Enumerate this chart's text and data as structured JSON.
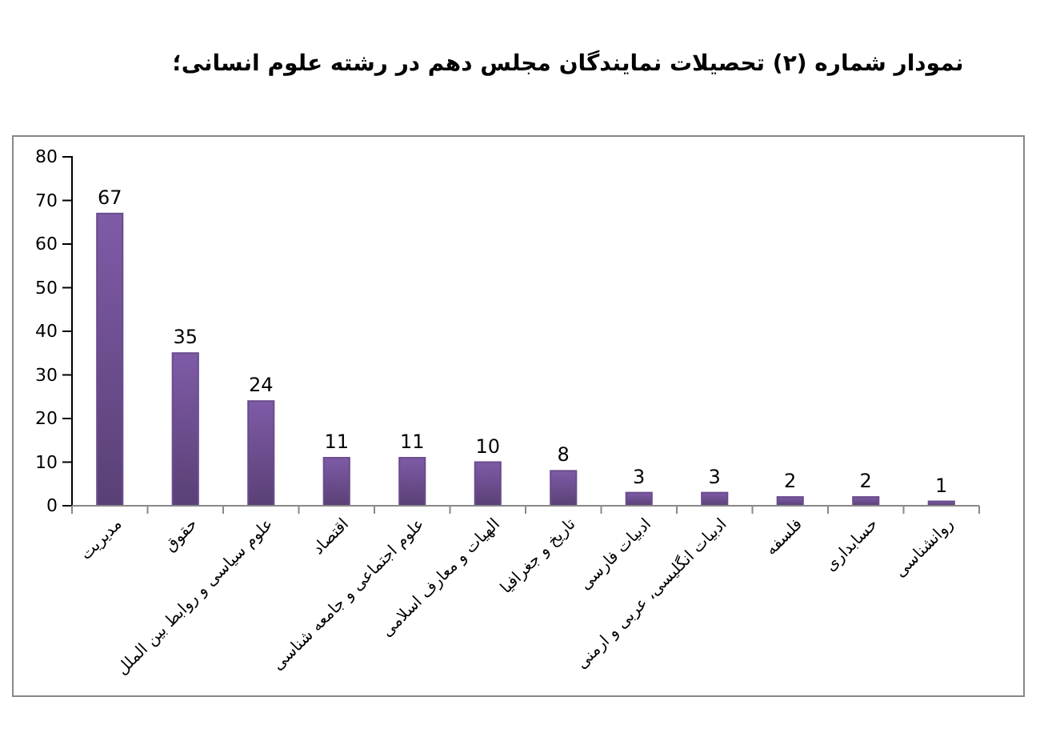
{
  "chart_data": {
    "type": "bar",
    "title": "نمودار شماره (۲) تحصیلات نمایندگان مجلس دهم در رشته علوم انسانی؛",
    "categories": [
      "مدیریت",
      "حقوق",
      "علوم سیاسی و روابط بین الملل",
      "اقتصاد",
      "علوم اجتماعی و جامعه شناسی",
      "الهیات و معارف اسلامی",
      "تاریخ و جغرافیا",
      "ادبیات فارسی",
      "ادبیات انگلیسی، عربی و ارمنی",
      "فلسفه",
      "حسابداری",
      "روانشناسی"
    ],
    "values": [
      67,
      35,
      24,
      11,
      11,
      10,
      8,
      3,
      3,
      2,
      2,
      1
    ],
    "color": "#6a4c8c",
    "ylim": [
      0,
      80
    ],
    "yticks": [
      0,
      10,
      20,
      30,
      40,
      50,
      60,
      70,
      80
    ],
    "data_labels": true
  }
}
